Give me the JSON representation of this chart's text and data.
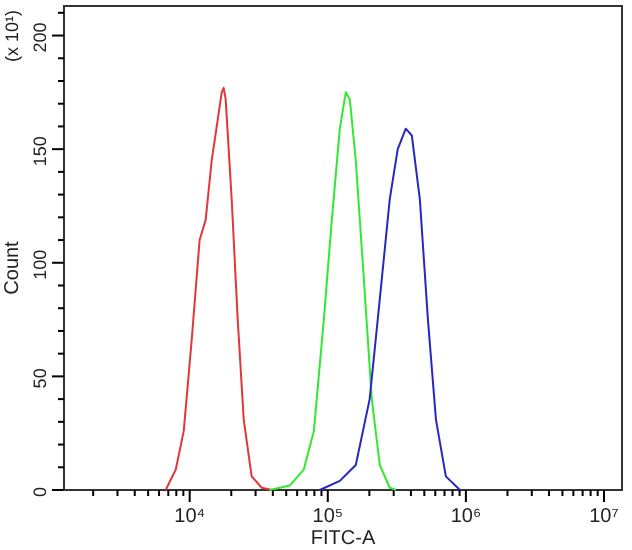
{
  "chart_data": {
    "type": "line",
    "xlabel": "FITC-A",
    "ylabel": "Count",
    "annotations": [
      "(x 10¹)"
    ],
    "log": "x",
    "grid": false,
    "marker": "none",
    "line_style": "solid",
    "xlim": [
      1230,
      13500000
    ],
    "ylim": [
      0,
      213
    ],
    "xticks": [
      {
        "value": 2000,
        "label": null
      },
      {
        "value": 3000,
        "label": null
      },
      {
        "value": 4000,
        "label": null
      },
      {
        "value": 5000,
        "label": null
      },
      {
        "value": 6000,
        "label": null
      },
      {
        "value": 7000,
        "label": null
      },
      {
        "value": 8000,
        "label": null
      },
      {
        "value": 9000,
        "label": null
      },
      {
        "value": 10000,
        "label": "10⁴"
      },
      {
        "value": 20000,
        "label": null
      },
      {
        "value": 30000,
        "label": null
      },
      {
        "value": 40000,
        "label": null
      },
      {
        "value": 50000,
        "label": null
      },
      {
        "value": 60000,
        "label": null
      },
      {
        "value": 70000,
        "label": null
      },
      {
        "value": 80000,
        "label": null
      },
      {
        "value": 90000,
        "label": null
      },
      {
        "value": 100000,
        "label": "10⁵"
      },
      {
        "value": 200000,
        "label": null
      },
      {
        "value": 300000,
        "label": null
      },
      {
        "value": 400000,
        "label": null
      },
      {
        "value": 500000,
        "label": null
      },
      {
        "value": 600000,
        "label": null
      },
      {
        "value": 700000,
        "label": null
      },
      {
        "value": 800000,
        "label": null
      },
      {
        "value": 900000,
        "label": null
      },
      {
        "value": 1000000,
        "label": "10⁶"
      },
      {
        "value": 2000000,
        "label": null
      },
      {
        "value": 3000000,
        "label": null
      },
      {
        "value": 4000000,
        "label": null
      },
      {
        "value": 5000000,
        "label": null
      },
      {
        "value": 6000000,
        "label": null
      },
      {
        "value": 7000000,
        "label": null
      },
      {
        "value": 8000000,
        "label": null
      },
      {
        "value": 9000000,
        "label": null
      },
      {
        "value": 10000000,
        "label": "10⁷"
      }
    ],
    "yticks": [
      0,
      {
        "value": 10,
        "label": null
      },
      {
        "value": 20,
        "label": null
      },
      {
        "value": 30,
        "label": null
      },
      {
        "value": 40,
        "label": null
      },
      50,
      {
        "value": 60,
        "label": null
      },
      {
        "value": 70,
        "label": null
      },
      {
        "value": 80,
        "label": null
      },
      {
        "value": 90,
        "label": null
      },
      100,
      {
        "value": 110,
        "label": null
      },
      {
        "value": 120,
        "label": null
      },
      {
        "value": 130,
        "label": null
      },
      {
        "value": 140,
        "label": null
      },
      150,
      {
        "value": 160,
        "label": null
      },
      {
        "value": 170,
        "label": null
      },
      {
        "value": 180,
        "label": null
      },
      {
        "value": 190,
        "label": null
      },
      200,
      {
        "value": 210,
        "label": null
      }
    ],
    "series": [
      {
        "color": "#e03838",
        "x": [
          6700,
          7930,
          9060,
          10340,
          11800,
          13060,
          14430,
          15960,
          17060,
          17620,
          18220,
          20140,
          22270,
          24620,
          28100,
          33240,
          39300
        ],
        "values": [
          0,
          9,
          26,
          66,
          110,
          119,
          145,
          163,
          175,
          177,
          172,
          128,
          75,
          31,
          6,
          1,
          0
        ]
      },
      {
        "color": "#33e833",
        "x": [
          38000,
          53100,
          67000,
          79300,
          93600,
          107000,
          122200,
          135000,
          144300,
          159500,
          182300,
          208300,
          238000,
          281000,
          311000
        ],
        "values": [
          0,
          2,
          9,
          26,
          75,
          119,
          159,
          175,
          172,
          145,
          93,
          40,
          11,
          1,
          0
        ]
      },
      {
        "color": "#2828c0",
        "x": [
          87500,
          122200,
          159500,
          201000,
          238000,
          281000,
          321000,
          367000,
          406000,
          464000,
          531000,
          607000,
          716000,
          906000
        ],
        "values": [
          0,
          4,
          11,
          40,
          84,
          128,
          150,
          159,
          156,
          128,
          75,
          31,
          6,
          0
        ]
      }
    ]
  }
}
